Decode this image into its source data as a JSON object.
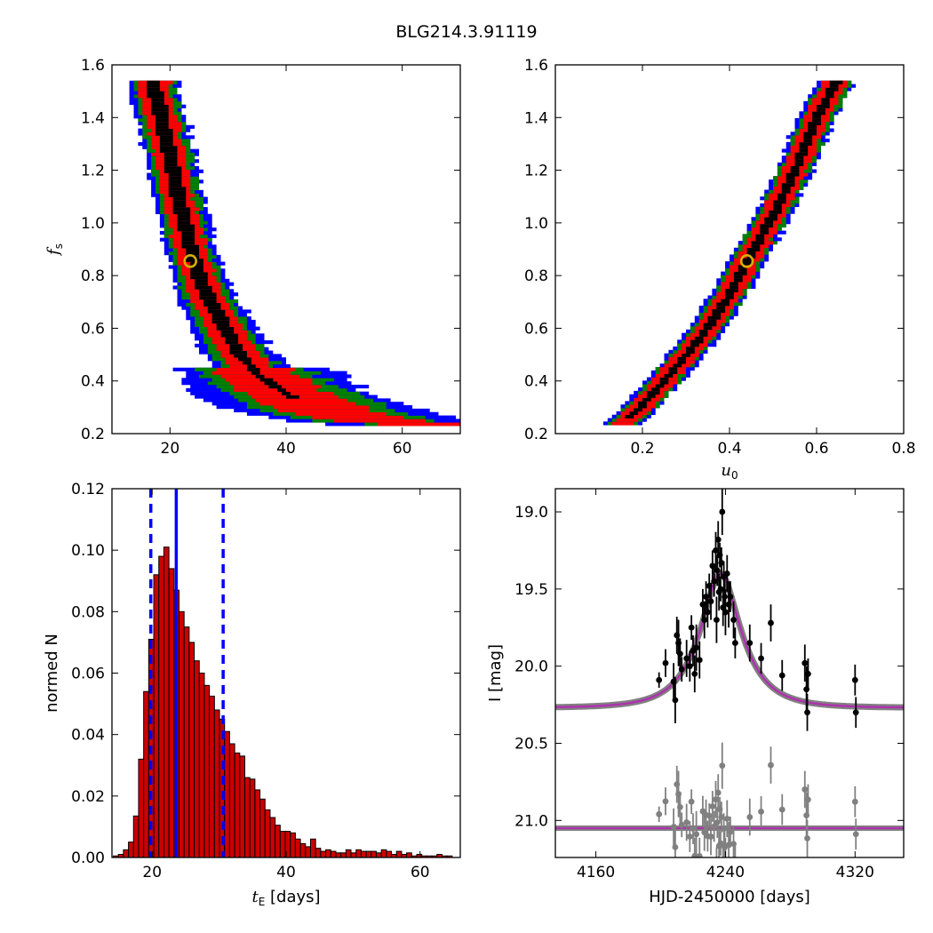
{
  "figure_title": "BLG214.3.91119",
  "chart_data": [
    {
      "id": "fs_vs_tE",
      "type": "heatmap",
      "title": "",
      "xlabel": "",
      "ylabel": "f_s",
      "xlim": [
        10,
        70
      ],
      "ylim": [
        0.2,
        1.6
      ],
      "xticks": [
        20,
        40,
        60
      ],
      "xticklabels": [
        "20",
        "40",
        "60"
      ],
      "yticks": [
        0.2,
        0.4,
        0.6,
        0.8,
        1.0,
        1.2,
        1.4,
        1.6
      ],
      "yticklabels": [
        "0.2",
        "0.4",
        "0.6",
        "0.8",
        "1.0",
        "1.2",
        "1.4",
        "1.6"
      ],
      "region_colors": {
        "outer": "#0000ff",
        "second": "#008000",
        "third": "#ff0000",
        "core": "#000000"
      },
      "ridge_points": [
        [
          17,
          1.54
        ],
        [
          18,
          1.45
        ],
        [
          19,
          1.35
        ],
        [
          20,
          1.25
        ],
        [
          21,
          1.15
        ],
        [
          22,
          1.05
        ],
        [
          23,
          0.95
        ],
        [
          24,
          0.88
        ],
        [
          25,
          0.8
        ],
        [
          26,
          0.74
        ],
        [
          28,
          0.66
        ],
        [
          30,
          0.58
        ],
        [
          32,
          0.5
        ],
        [
          35,
          0.43
        ],
        [
          38,
          0.38
        ],
        [
          42,
          0.33
        ],
        [
          46,
          0.29
        ],
        [
          52,
          0.26
        ],
        [
          60,
          0.24
        ],
        [
          65,
          0.235
        ]
      ],
      "best_fit": {
        "x": 23.5,
        "y": 0.855
      },
      "best_fit_color": "#d4b000"
    },
    {
      "id": "fs_vs_u0",
      "type": "heatmap",
      "title": "",
      "xlabel": "u_0",
      "ylabel": "",
      "xlim": [
        0.0,
        0.8
      ],
      "ylim": [
        0.2,
        1.6
      ],
      "xticks": [
        0.2,
        0.4,
        0.6,
        0.8
      ],
      "xticklabels": [
        "0.2",
        "0.4",
        "0.6",
        "0.8"
      ],
      "yticks": [
        0.2,
        0.4,
        0.6,
        0.8,
        1.0,
        1.2,
        1.4,
        1.6
      ],
      "yticklabels": [
        "0.2",
        "0.4",
        "0.6",
        "0.8",
        "1.0",
        "1.2",
        "1.4",
        "1.6"
      ],
      "region_colors": {
        "outer": "#0000ff",
        "second": "#008000",
        "third": "#ff0000",
        "core": "#000000"
      },
      "ridge_points": [
        [
          0.15,
          0.23
        ],
        [
          0.2,
          0.31
        ],
        [
          0.25,
          0.4
        ],
        [
          0.3,
          0.5
        ],
        [
          0.35,
          0.6
        ],
        [
          0.4,
          0.73
        ],
        [
          0.44,
          0.855
        ],
        [
          0.5,
          1.03
        ],
        [
          0.55,
          1.2
        ],
        [
          0.6,
          1.4
        ],
        [
          0.65,
          1.55
        ]
      ],
      "best_fit": {
        "x": 0.44,
        "y": 0.855
      },
      "best_fit_color": "#d4b000"
    },
    {
      "id": "tE_hist",
      "type": "bar",
      "title": "",
      "xlabel": "t_E [days]",
      "ylabel": "normed N",
      "xlim": [
        14,
        66
      ],
      "ylim": [
        0.0,
        0.12
      ],
      "xticks": [
        20,
        40,
        60
      ],
      "xticklabels": [
        "20",
        "40",
        "60"
      ],
      "yticks": [
        0.0,
        0.02,
        0.04,
        0.06,
        0.08,
        0.1,
        0.12
      ],
      "yticklabels": [
        "0.00",
        "0.02",
        "0.04",
        "0.06",
        "0.08",
        "0.10",
        "0.12"
      ],
      "bin_start": 14.2,
      "bin_width": 0.755,
      "values": [
        0.0005,
        0.001,
        0.0025,
        0.005,
        0.0135,
        0.032,
        0.054,
        0.071,
        0.092,
        0.098,
        0.101,
        0.094,
        0.087,
        0.08,
        0.075,
        0.07,
        0.064,
        0.06,
        0.056,
        0.0525,
        0.048,
        0.045,
        0.041,
        0.037,
        0.034,
        0.033,
        0.026,
        0.0255,
        0.022,
        0.019,
        0.0155,
        0.013,
        0.0105,
        0.0085,
        0.0085,
        0.008,
        0.006,
        0.0045,
        0.0035,
        0.006,
        0.003,
        0.002,
        0.0025,
        0.002,
        0.0015,
        0.0015,
        0.0025,
        0.0015,
        0.0025,
        0.002,
        0.002,
        0.002,
        0.0015,
        0.0025,
        0.002,
        0.001,
        0.002,
        0.001,
        0.0015,
        0.0005,
        0.001,
        0.0005,
        0.0005,
        0.0005,
        0.001,
        0.0005,
        0.0005
      ],
      "bar_color": "#cc0000",
      "vlines": [
        {
          "x": 23.6,
          "style": "solid",
          "color": "#0000ff"
        },
        {
          "x": 19.8,
          "style": "dashed",
          "color": "#0000ff"
        },
        {
          "x": 30.6,
          "style": "dashed",
          "color": "#0000ff"
        }
      ]
    },
    {
      "id": "light_curve",
      "type": "scatter",
      "title": "",
      "xlabel": "HJD-2450000 [days]",
      "ylabel": "I [mag]",
      "xlim": [
        4135,
        4350
      ],
      "ylim": [
        21.24,
        18.85
      ],
      "xticks": [
        4160,
        4240,
        4320
      ],
      "xticklabels": [
        "4160",
        "4240",
        "4320"
      ],
      "yticks": [
        19.0,
        19.5,
        20.0,
        20.5,
        21.0
      ],
      "yticklabels": [
        "19.0",
        "19.5",
        "20.0",
        "20.5",
        "21.0"
      ],
      "model": {
        "t0": 4237,
        "tE": 23.6,
        "u0": 0.44,
        "fs": 0.855,
        "baseline_mag": 20.27,
        "color": "#b030b0",
        "band_color": "#808080"
      },
      "residual_offset": 21.05,
      "data_color": "#000000",
      "residual_color": "#808080",
      "points": [
        [
          4199,
          20.09,
          0.05
        ],
        [
          4203,
          19.98,
          0.09
        ],
        [
          4208,
          20.1,
          0.12
        ],
        [
          4209,
          20.22,
          0.15
        ],
        [
          4210,
          19.8,
          0.12
        ],
        [
          4211,
          19.85,
          0.15
        ],
        [
          4212,
          19.92,
          0.1
        ],
        [
          4213,
          20.02,
          0.08
        ],
        [
          4216,
          19.95,
          0.12
        ],
        [
          4218,
          20.0,
          0.1
        ],
        [
          4219,
          19.75,
          0.08
        ],
        [
          4220,
          19.9,
          0.1
        ],
        [
          4221,
          20.05,
          0.12
        ],
        [
          4222,
          19.88,
          0.15
        ],
        [
          4224,
          19.96,
          0.12
        ],
        [
          4226,
          19.6,
          0.1
        ],
        [
          4227,
          19.7,
          0.12
        ],
        [
          4228,
          19.55,
          0.1
        ],
        [
          4229,
          19.65,
          0.1
        ],
        [
          4230,
          19.48,
          0.08
        ],
        [
          4231,
          19.58,
          0.12
        ],
        [
          4232,
          19.35,
          0.1
        ],
        [
          4233,
          19.45,
          0.1
        ],
        [
          4234,
          19.25,
          0.12
        ],
        [
          4234.5,
          19.7,
          0.15
        ],
        [
          4235,
          19.38,
          0.1
        ],
        [
          4235.5,
          19.18,
          0.12
        ],
        [
          4236,
          19.52,
          0.12
        ],
        [
          4236.5,
          19.28,
          0.08
        ],
        [
          4237,
          19.5,
          0.08
        ],
        [
          4237.5,
          19.33,
          0.1
        ],
        [
          4238,
          19.0,
          0.15
        ],
        [
          4238.5,
          19.62,
          0.12
        ],
        [
          4239,
          19.42,
          0.1
        ],
        [
          4239.5,
          19.55,
          0.12
        ],
        [
          4240,
          19.65,
          0.15
        ],
        [
          4241,
          19.4,
          0.12
        ],
        [
          4242,
          19.6,
          0.15
        ],
        [
          4243,
          19.55,
          0.1
        ],
        [
          4245,
          19.7,
          0.12
        ],
        [
          4246,
          19.85,
          0.1
        ],
        [
          4255,
          19.85,
          0.12
        ],
        [
          4262,
          19.95,
          0.1
        ],
        [
          4268,
          19.72,
          0.12
        ],
        [
          4275,
          20.06,
          0.1
        ],
        [
          4289,
          19.98,
          0.12
        ],
        [
          4290,
          20.15,
          0.15
        ],
        [
          4290.5,
          20.3,
          0.12
        ],
        [
          4291,
          20.05,
          0.1
        ],
        [
          4320,
          20.09,
          0.1
        ],
        [
          4320.5,
          20.3,
          0.1
        ]
      ]
    }
  ]
}
